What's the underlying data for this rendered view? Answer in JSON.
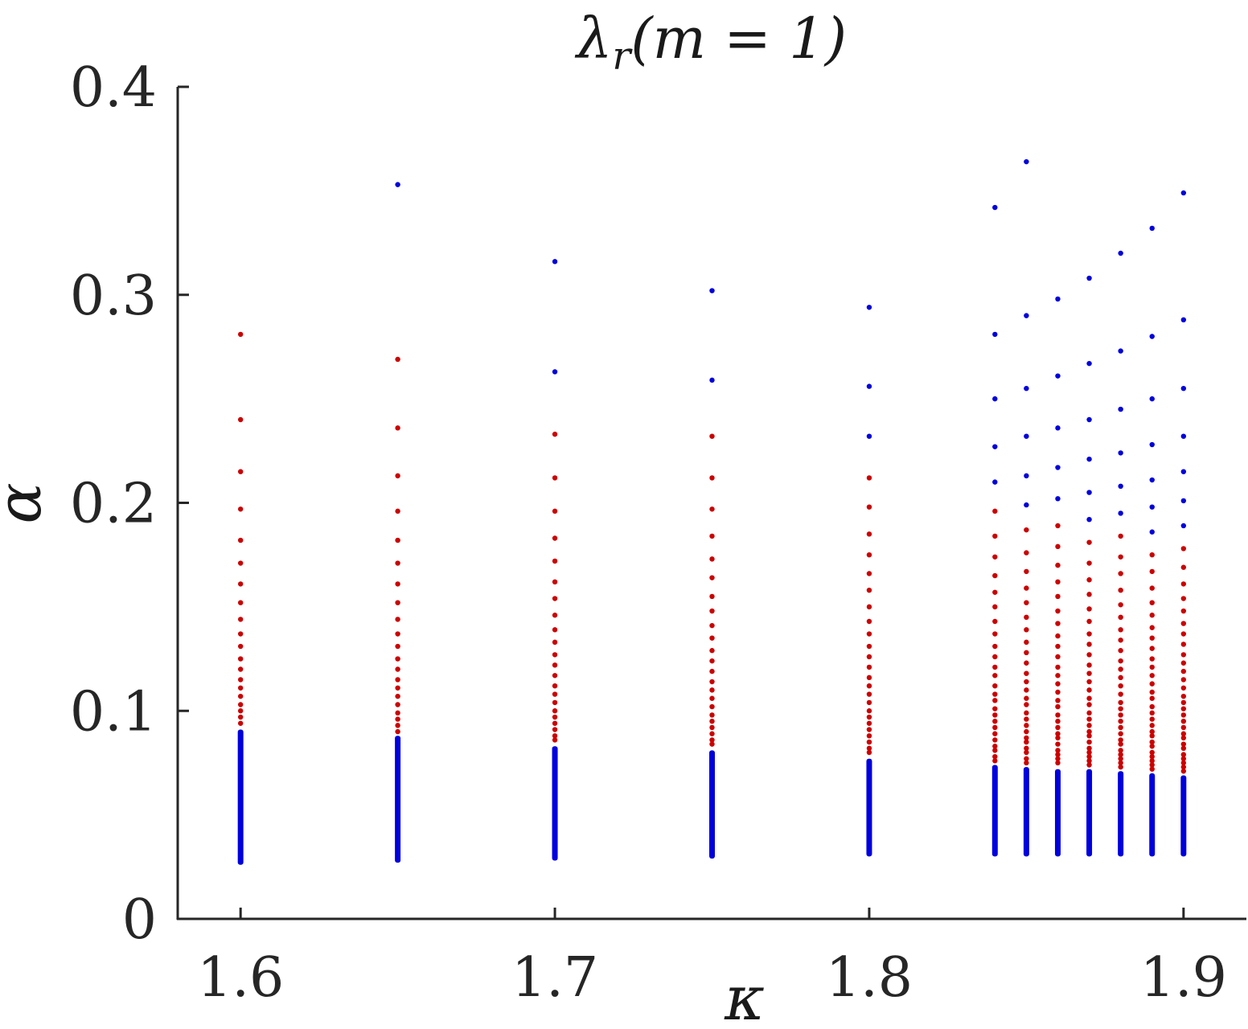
{
  "chart_data": {
    "type": "scatter",
    "title": "λ_r(m = 1)",
    "xlabel": "κ",
    "ylabel": "α",
    "xlim": [
      1.58,
      1.92
    ],
    "ylim": [
      0,
      0.4
    ],
    "xticks": [
      1.6,
      1.7,
      1.8,
      1.9
    ],
    "xtick_labels": [
      "1.6",
      "1.7",
      "1.8",
      "1.9"
    ],
    "yticks": [
      0,
      0.1,
      0.2,
      0.3,
      0.4
    ],
    "ytick_labels": [
      "0",
      "0.1",
      "0.2",
      "0.3",
      "0.4"
    ],
    "grid": false,
    "colors": {
      "blue": "#0000dd",
      "red": "#cc0000",
      "axis": "#262626"
    },
    "series": [
      {
        "kappa": 1.6,
        "upper_blue": [],
        "red": [
          0.281,
          0.24,
          0.215,
          0.197,
          0.182,
          0.171,
          0.161,
          0.152,
          0.144,
          0.137,
          0.131,
          0.125,
          0.12,
          0.115,
          0.111,
          0.107,
          0.103,
          0.1,
          0.097,
          0.094
        ],
        "lower_blue_range": [
          0.026,
          0.091
        ]
      },
      {
        "kappa": 1.65,
        "upper_blue": [
          0.353
        ],
        "red": [
          0.269,
          0.236,
          0.213,
          0.196,
          0.182,
          0.171,
          0.161,
          0.152,
          0.144,
          0.137,
          0.131,
          0.125,
          0.12,
          0.115,
          0.111,
          0.107,
          0.103,
          0.099,
          0.096,
          0.093,
          0.09
        ],
        "lower_blue_range": [
          0.027,
          0.088
        ]
      },
      {
        "kappa": 1.7,
        "upper_blue": [
          0.316,
          0.263
        ],
        "red": [
          0.233,
          0.212,
          0.196,
          0.183,
          0.172,
          0.162,
          0.154,
          0.146,
          0.139,
          0.133,
          0.127,
          0.122,
          0.117,
          0.112,
          0.108,
          0.104,
          0.1,
          0.097,
          0.094,
          0.091,
          0.088,
          0.086
        ],
        "lower_blue_range": [
          0.028,
          0.083
        ]
      },
      {
        "kappa": 1.75,
        "upper_blue": [
          0.302,
          0.259
        ],
        "red": [
          0.232,
          0.212,
          0.197,
          0.184,
          0.173,
          0.164,
          0.155,
          0.148,
          0.141,
          0.135,
          0.129,
          0.124,
          0.119,
          0.114,
          0.11,
          0.106,
          0.102,
          0.098,
          0.095,
          0.092,
          0.089,
          0.086,
          0.084
        ],
        "lower_blue_range": [
          0.029,
          0.081
        ]
      },
      {
        "kappa": 1.8,
        "upper_blue": [
          0.294,
          0.256,
          0.232
        ],
        "red": [
          0.212,
          0.198,
          0.185,
          0.175,
          0.166,
          0.158,
          0.15,
          0.143,
          0.137,
          0.131,
          0.126,
          0.121,
          0.116,
          0.112,
          0.108,
          0.104,
          0.1,
          0.097,
          0.094,
          0.091,
          0.088,
          0.085,
          0.082,
          0.08
        ],
        "lower_blue_range": [
          0.03,
          0.077
        ]
      },
      {
        "kappa": 1.84,
        "upper_blue": [
          0.342,
          0.281,
          0.25,
          0.227,
          0.21
        ],
        "red": [
          0.196,
          0.184,
          0.174,
          0.165,
          0.157,
          0.15,
          0.143,
          0.137,
          0.131,
          0.126,
          0.121,
          0.117,
          0.112,
          0.108,
          0.105,
          0.101,
          0.098,
          0.095,
          0.092,
          0.089,
          0.086,
          0.083,
          0.081,
          0.078,
          0.076
        ],
        "lower_blue_range": [
          0.03,
          0.074
        ]
      },
      {
        "kappa": 1.85,
        "upper_blue": [
          0.364,
          0.29,
          0.255,
          0.232,
          0.213,
          0.199
        ],
        "red": [
          0.187,
          0.176,
          0.167,
          0.159,
          0.152,
          0.145,
          0.139,
          0.133,
          0.128,
          0.123,
          0.118,
          0.114,
          0.11,
          0.106,
          0.103,
          0.099,
          0.096,
          0.093,
          0.09,
          0.087,
          0.085,
          0.082,
          0.08,
          0.077,
          0.075
        ],
        "lower_blue_range": [
          0.03,
          0.073
        ]
      },
      {
        "kappa": 1.86,
        "upper_blue": [
          0.298,
          0.261,
          0.236,
          0.217,
          0.202
        ],
        "red": [
          0.189,
          0.179,
          0.17,
          0.162,
          0.155,
          0.148,
          0.142,
          0.136,
          0.131,
          0.126,
          0.121,
          0.117,
          0.113,
          0.109,
          0.105,
          0.102,
          0.098,
          0.095,
          0.092,
          0.089,
          0.087,
          0.084,
          0.081,
          0.079,
          0.077,
          0.075
        ],
        "lower_blue_range": [
          0.03,
          0.072
        ]
      },
      {
        "kappa": 1.87,
        "upper_blue": [
          0.308,
          0.267,
          0.24,
          0.221,
          0.205,
          0.192
        ],
        "red": [
          0.181,
          0.171,
          0.163,
          0.156,
          0.149,
          0.143,
          0.137,
          0.132,
          0.127,
          0.122,
          0.118,
          0.114,
          0.11,
          0.106,
          0.103,
          0.099,
          0.096,
          0.093,
          0.09,
          0.088,
          0.085,
          0.082,
          0.08,
          0.078,
          0.076,
          0.074
        ],
        "lower_blue_range": [
          0.03,
          0.072
        ]
      },
      {
        "kappa": 1.88,
        "upper_blue": [
          0.32,
          0.273,
          0.245,
          0.224,
          0.208,
          0.195
        ],
        "red": [
          0.184,
          0.174,
          0.166,
          0.158,
          0.151,
          0.145,
          0.139,
          0.134,
          0.129,
          0.124,
          0.12,
          0.116,
          0.112,
          0.108,
          0.104,
          0.101,
          0.098,
          0.095,
          0.092,
          0.089,
          0.086,
          0.084,
          0.081,
          0.079,
          0.077,
          0.075,
          0.073
        ],
        "lower_blue_range": [
          0.03,
          0.071
        ]
      },
      {
        "kappa": 1.89,
        "upper_blue": [
          0.332,
          0.28,
          0.25,
          0.228,
          0.211,
          0.198,
          0.186
        ],
        "red": [
          0.175,
          0.167,
          0.159,
          0.152,
          0.146,
          0.14,
          0.135,
          0.13,
          0.125,
          0.121,
          0.117,
          0.113,
          0.109,
          0.106,
          0.102,
          0.099,
          0.096,
          0.093,
          0.09,
          0.088,
          0.085,
          0.083,
          0.08,
          0.078,
          0.076,
          0.074,
          0.072
        ],
        "lower_blue_range": [
          0.03,
          0.07
        ]
      },
      {
        "kappa": 1.9,
        "upper_blue": [
          0.349,
          0.288,
          0.255,
          0.232,
          0.215,
          0.201,
          0.189
        ],
        "red": [
          0.178,
          0.169,
          0.161,
          0.154,
          0.148,
          0.142,
          0.137,
          0.132,
          0.127,
          0.123,
          0.119,
          0.115,
          0.111,
          0.107,
          0.104,
          0.101,
          0.098,
          0.095,
          0.092,
          0.089,
          0.087,
          0.084,
          0.082,
          0.079,
          0.077,
          0.075,
          0.073,
          0.071
        ],
        "lower_blue_range": [
          0.03,
          0.069
        ]
      }
    ]
  }
}
